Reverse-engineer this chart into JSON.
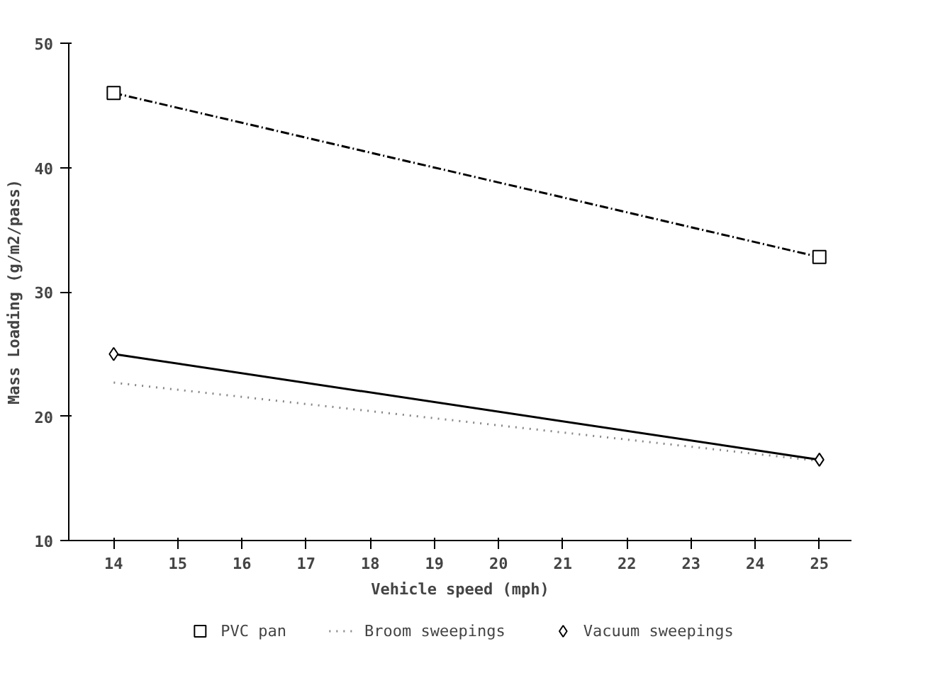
{
  "chart_data": {
    "type": "line",
    "xlabel": "Vehicle speed (mph)",
    "ylabel": "Mass Loading (g/m2/pass)",
    "x": [
      14,
      25
    ],
    "xlim": [
      13.3,
      25.5
    ],
    "xticks": [
      14,
      15,
      16,
      17,
      18,
      19,
      20,
      21,
      22,
      23,
      24,
      25
    ],
    "ylim": [
      10,
      50
    ],
    "yticks": [
      10,
      20,
      30,
      40,
      50
    ],
    "grid": false,
    "legend": "bottom",
    "series": [
      {
        "name": "PVC pan",
        "color": "#000000",
        "values": [
          46,
          32.8
        ],
        "marker": "square",
        "line_style": "dashed"
      },
      {
        "name": "Broom sweepings",
        "color": "#888888",
        "values": [
          22.7,
          16.4
        ],
        "marker": "none",
        "line_style": "dotted"
      },
      {
        "name": "Vacuum sweepings",
        "color": "#000000",
        "values": [
          25,
          16.5
        ],
        "marker": "diamond",
        "line_style": "solid"
      }
    ]
  }
}
